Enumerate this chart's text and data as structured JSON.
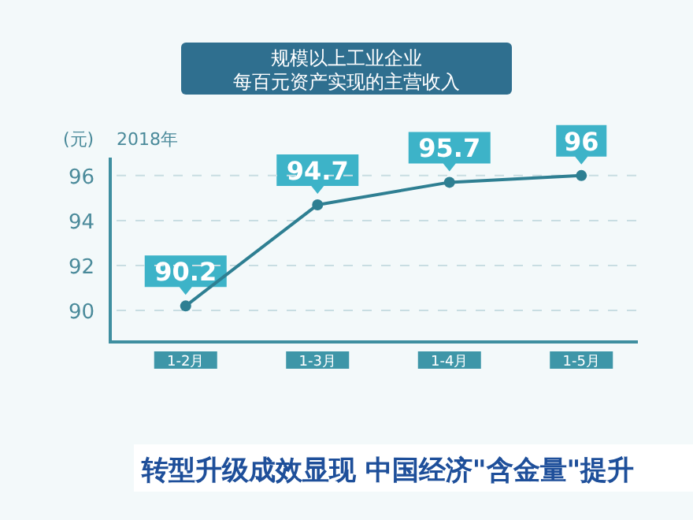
{
  "chart_data": {
    "type": "line",
    "title": "规模以上工业企业",
    "subtitle": "每百元资产实现的主营收入",
    "ylabel": "(元)",
    "categories": [
      "1-2月",
      "1-3月",
      "1-4月",
      "1-5月"
    ],
    "series": [
      {
        "color": "#2e7f92",
        "values": [
          90.2,
          94.7,
          95.7,
          96
        ]
      }
    ],
    "ylim": [
      88.6,
      96.8
    ],
    "yticks": [
      90,
      92,
      94,
      96
    ],
    "grid": "y",
    "marker": "circle",
    "line_style": "solid",
    "data_labels": true,
    "annotations": [
      "2018年",
      "转型升级成效显现 中国经济\"含金量\"提升"
    ]
  }
}
